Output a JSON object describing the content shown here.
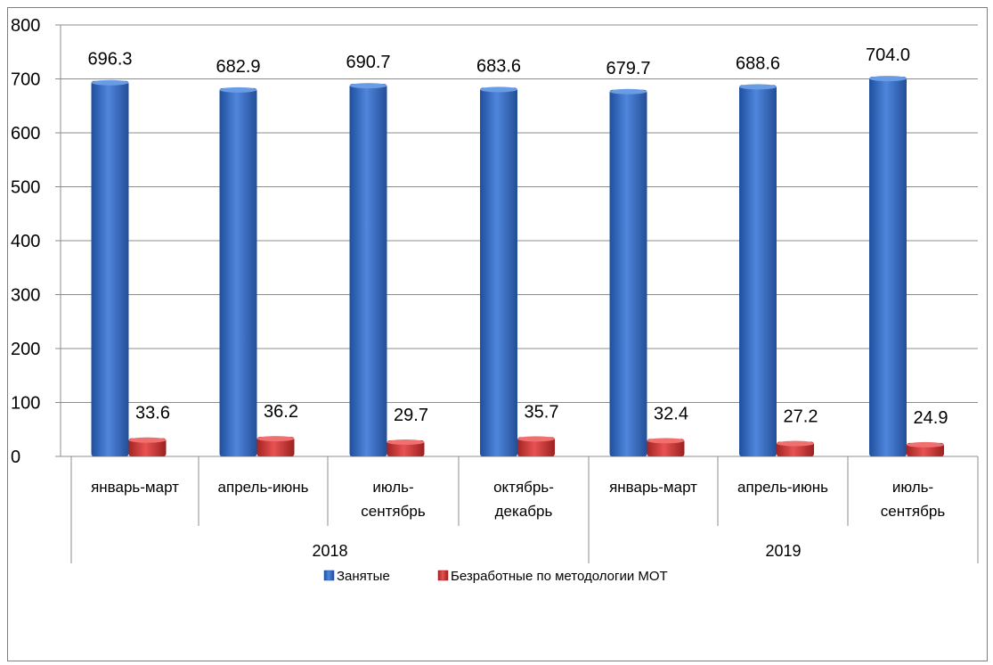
{
  "chart_data": {
    "type": "bar",
    "title": "",
    "xlabel": "",
    "ylabel": "",
    "ylim": [
      0,
      800
    ],
    "yticks": [
      0,
      100,
      200,
      300,
      400,
      500,
      600,
      700,
      800
    ],
    "grid": true,
    "legend_position": "bottom",
    "categories": [
      {
        "label": [
          "январь-март"
        ],
        "year": "2018"
      },
      {
        "label": [
          "апрель-июнь"
        ],
        "year": "2018"
      },
      {
        "label": [
          "июль-",
          "сентябрь"
        ],
        "year": "2018"
      },
      {
        "label": [
          "октябрь-",
          "декабрь"
        ],
        "year": "2018"
      },
      {
        "label": [
          "январь-март"
        ],
        "year": "2019"
      },
      {
        "label": [
          "апрель-июнь"
        ],
        "year": "2019"
      },
      {
        "label": [
          "июль-",
          "сентябрь"
        ],
        "year": "2019"
      }
    ],
    "year_groups": [
      {
        "label": "2018",
        "span": 4
      },
      {
        "label": "2019",
        "span": 3
      }
    ],
    "series": [
      {
        "name": "Занятые",
        "color": "#3c70c8",
        "values": [
          696.3,
          682.9,
          690.7,
          683.6,
          679.7,
          688.6,
          704.0
        ],
        "labels": [
          "696.3",
          "682.9",
          "690.7",
          "683.6",
          "679.7",
          "688.6",
          "704.0"
        ]
      },
      {
        "name": "Безработные по методологии МОТ",
        "color": "#d63a3a",
        "values": [
          33.6,
          36.2,
          29.7,
          35.7,
          32.4,
          27.2,
          24.9
        ],
        "labels": [
          "33.6",
          "36.2",
          "29.7",
          "35.7",
          "32.4",
          "27.2",
          "24.9"
        ]
      }
    ]
  }
}
